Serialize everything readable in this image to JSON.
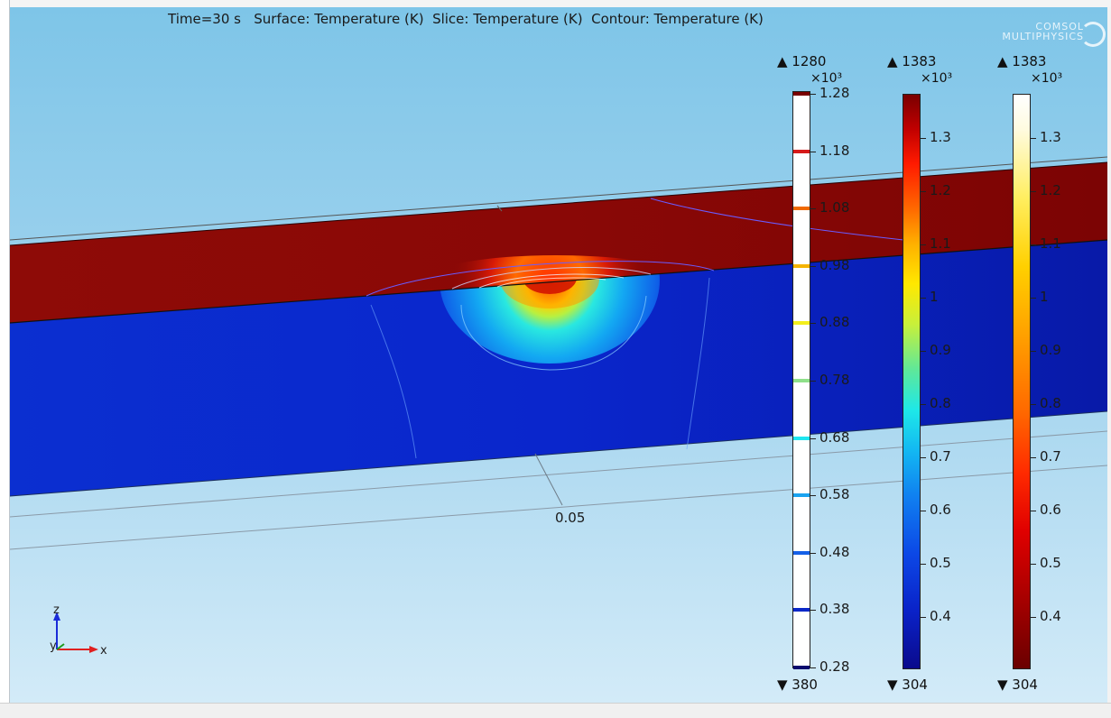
{
  "plot": {
    "title": "Time=30 s   Surface: Temperature (K)  Slice: Temperature (K)  Contour: Temperature (K)",
    "brand_line1": "COMSOL",
    "brand_line2": "MULTIPHYSICS",
    "axis_tick": "0.05",
    "triad": {
      "z": "z",
      "y": "y",
      "x": "x"
    }
  },
  "legends": [
    {
      "name": "contour",
      "max": "▲ 1280",
      "exponent": "×10³",
      "min": "▼ 380",
      "ticks": [
        "1.28",
        "1.18",
        "1.08",
        "0.98",
        "0.88",
        "0.78",
        "0.68",
        "0.58",
        "0.48",
        "0.38",
        "0.28"
      ],
      "tick_colors": [
        "#7a0000",
        "#d61a1a",
        "#f06a00",
        "#f5b400",
        "#f3ee1c",
        "#8fe08a",
        "#1ee6f0",
        "#1aa3f0",
        "#1560e8",
        "#0b28c8",
        "#0a0a6e"
      ]
    },
    {
      "name": "surface",
      "max": "▲ 1383",
      "exponent": "×10³",
      "min": "▼ 304",
      "ticks": [
        "1.3",
        "1.2",
        "1.1",
        "1",
        "0.9",
        "0.8",
        "0.7",
        "0.6",
        "0.5",
        "0.4"
      ],
      "colormap": "rainbow"
    },
    {
      "name": "slice",
      "max": "▲ 1383",
      "exponent": "×10³",
      "min": "▼ 304",
      "ticks": [
        "1.3",
        "1.2",
        "1.1",
        "1",
        "0.9",
        "0.8",
        "0.7",
        "0.6",
        "0.5",
        "0.4"
      ],
      "colormap": "thermal"
    }
  ],
  "colors": {
    "plate_top": "#8a0a06",
    "plate_front": "#0a22c8",
    "background_top": "#7ec5e8",
    "background_bottom": "#d3ebf8"
  }
}
